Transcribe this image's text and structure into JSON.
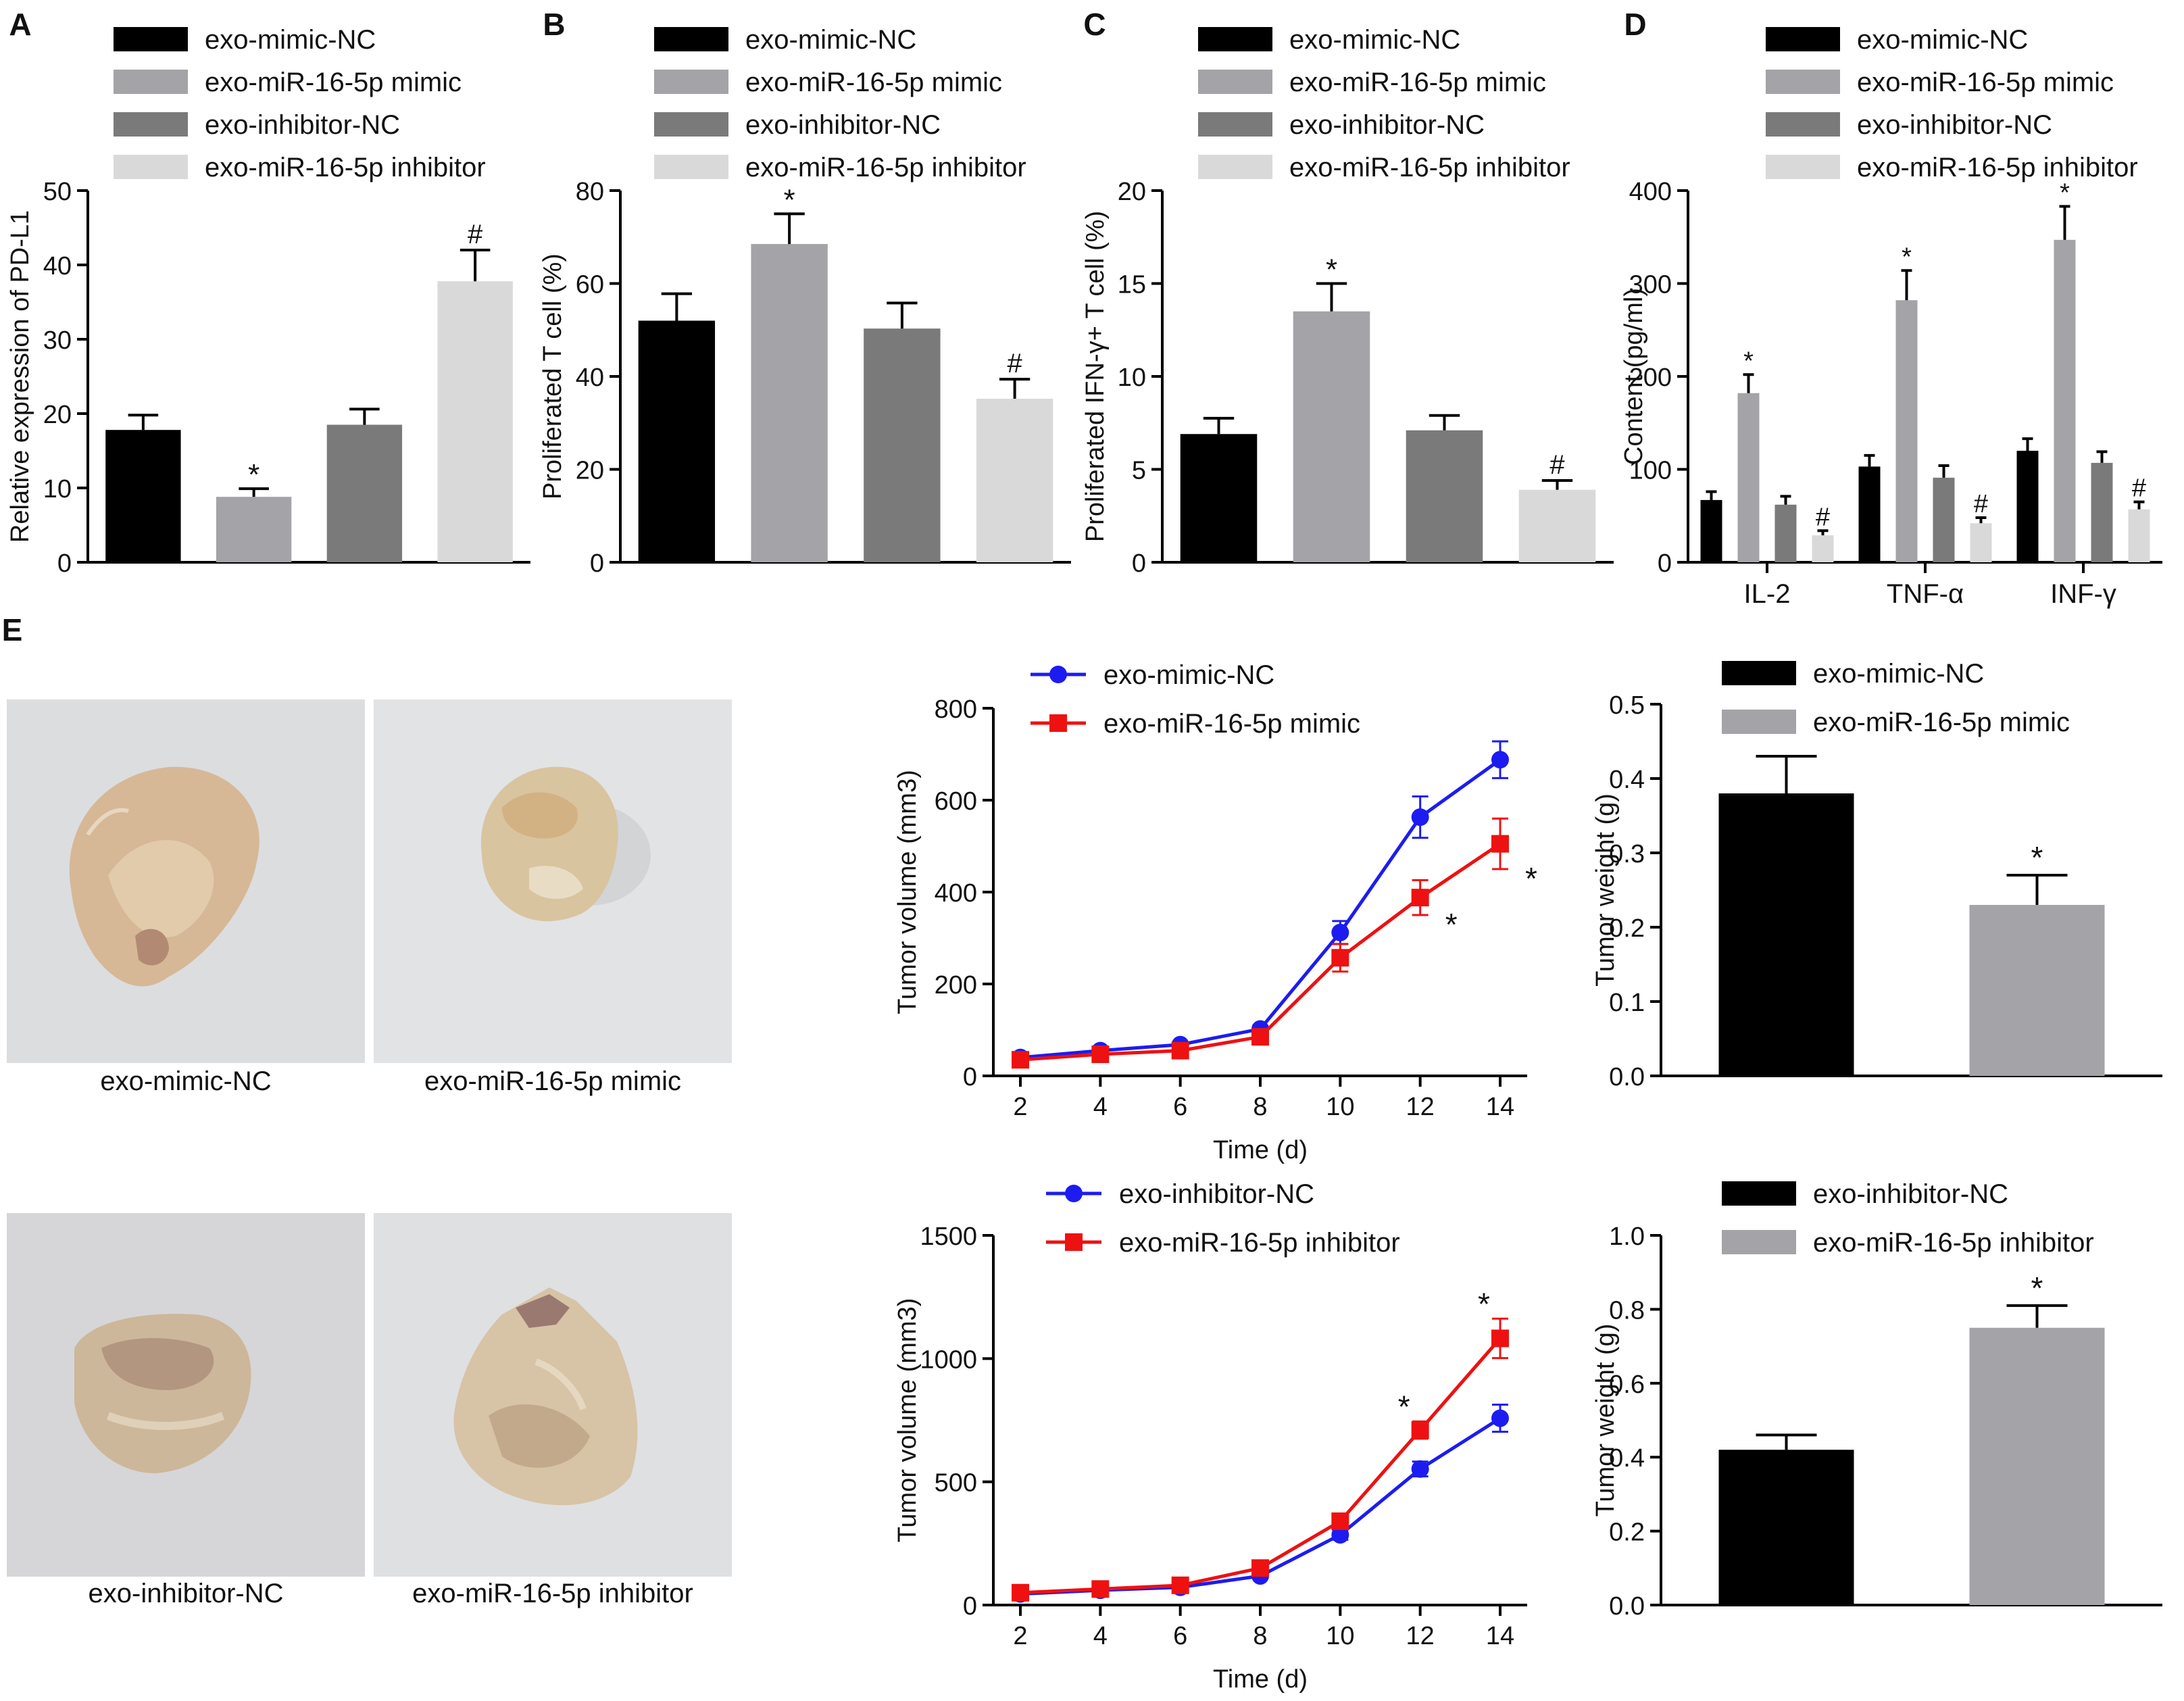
{
  "colors": {
    "black": "#000000",
    "mimic": "#a3a3a8",
    "dark_gray": "#7a7a7a",
    "light_gray": "#d9d9d9",
    "blue": "#1c1cf0",
    "red": "#ee1111",
    "photo_bg": "#d9dadc",
    "tumor": "#d8bc98",
    "tumor_dark": "#b89a7c",
    "tumor_pale": "#e4d4b8"
  },
  "panel_labels": [
    "A",
    "B",
    "C",
    "D",
    "E"
  ],
  "photos": {
    "captions": [
      "exo-mimic-NC",
      "exo-miR-16-5p mimic",
      "exo-inhibitor-NC",
      "exo-miR-16-5p inhibitor"
    ]
  },
  "chart_data": [
    {
      "id": "A",
      "type": "bar",
      "categories": [
        "exo-mimic-NC",
        "exo-miR-16-5p mimic",
        "exo-inhibitor-NC",
        "exo-miR-16-5p inhibitor"
      ],
      "values": [
        17.8,
        8.8,
        18.5,
        37.8
      ],
      "errors": [
        2.0,
        1.1,
        2.1,
        4.2
      ],
      "annotations": [
        "",
        "*",
        "",
        "#"
      ],
      "title": "",
      "xlabel": "",
      "ylabel": "Relative expression of PD-L1",
      "ylim": [
        0,
        50
      ],
      "yticks": [
        0,
        10,
        20,
        30,
        40,
        50
      ],
      "legend": [
        "exo-mimic-NC",
        "exo-miR-16-5p mimic",
        "exo-inhibitor-NC",
        "exo-miR-16-5p inhibitor"
      ]
    },
    {
      "id": "B",
      "type": "bar",
      "categories": [
        "exo-mimic-NC",
        "exo-miR-16-5p mimic",
        "exo-inhibitor-NC",
        "exo-miR-16-5p inhibitor"
      ],
      "values": [
        52,
        68.5,
        50.3,
        35.2
      ],
      "errors": [
        5.8,
        6.5,
        5.5,
        4.2
      ],
      "annotations": [
        "",
        "*",
        "",
        "#"
      ],
      "title": "",
      "xlabel": "",
      "ylabel": "Proliferated T cell (%)",
      "ylim": [
        0,
        80
      ],
      "yticks": [
        0,
        20,
        40,
        60,
        80
      ],
      "legend": [
        "exo-mimic-NC",
        "exo-miR-16-5p mimic",
        "exo-inhibitor-NC",
        "exo-miR-16-5p inhibitor"
      ]
    },
    {
      "id": "C",
      "type": "bar",
      "categories": [
        "exo-mimic-NC",
        "exo-miR-16-5p mimic",
        "exo-inhibitor-NC",
        "exo-miR-16-5p inhibitor"
      ],
      "values": [
        6.9,
        13.5,
        7.1,
        3.9
      ],
      "errors": [
        0.85,
        1.5,
        0.8,
        0.5
      ],
      "annotations": [
        "",
        "*",
        "",
        "#"
      ],
      "title": "",
      "xlabel": "",
      "ylabel": "Proliferated IFN-γ+ T cell (%)",
      "ylim": [
        0,
        20
      ],
      "yticks": [
        0,
        5,
        10,
        15,
        20
      ],
      "legend": [
        "exo-mimic-NC",
        "exo-miR-16-5p mimic",
        "exo-inhibitor-NC",
        "exo-miR-16-5p inhibitor"
      ]
    },
    {
      "id": "D",
      "type": "bar",
      "categories": [
        "IL-2",
        "TNF-α",
        "INF-γ"
      ],
      "series": [
        {
          "name": "exo-mimic-NC",
          "values": [
            67,
            103,
            120
          ],
          "errors": [
            9,
            12,
            13
          ],
          "annotations": [
            "",
            "",
            ""
          ]
        },
        {
          "name": "exo-miR-16-5p mimic",
          "values": [
            182,
            282,
            347
          ],
          "errors": [
            20,
            32,
            36
          ],
          "annotations": [
            "*",
            "*",
            "*"
          ]
        },
        {
          "name": "exo-inhibitor-NC",
          "values": [
            62,
            91,
            107
          ],
          "errors": [
            9,
            13,
            12
          ],
          "annotations": [
            "",
            "",
            ""
          ]
        },
        {
          "name": "exo-miR-16-5p inhibitor",
          "values": [
            29,
            42,
            57
          ],
          "errors": [
            5,
            6,
            8
          ],
          "annotations": [
            "#",
            "#",
            "#"
          ]
        }
      ],
      "title": "",
      "xlabel": "",
      "ylabel": "Content (pg/ml)",
      "ylim": [
        0,
        400
      ],
      "yticks": [
        0,
        100,
        200,
        300,
        400
      ]
    },
    {
      "id": "E-volume-mimic",
      "type": "line",
      "x": [
        2,
        4,
        6,
        8,
        10,
        12,
        14
      ],
      "series": [
        {
          "name": "exo-mimic-NC",
          "values": [
            40,
            55,
            68,
            102,
            312,
            563,
            688
          ],
          "errors": [
            5,
            5,
            5,
            7,
            25,
            45,
            40
          ],
          "annotations": [
            "",
            "",
            "",
            "",
            "",
            "",
            ""
          ]
        },
        {
          "name": "exo-miR-16-5p mimic",
          "values": [
            35,
            47,
            55,
            85,
            257,
            388,
            505
          ],
          "errors": [
            5,
            5,
            5,
            7,
            30,
            38,
            55
          ],
          "annotations": [
            "",
            "",
            "",
            "",
            "",
            "*",
            "*"
          ]
        }
      ],
      "title": "",
      "xlabel": "Time (d)",
      "ylabel": "Tumor volume (mm3)",
      "ylim": [
        0,
        800
      ],
      "yticks": [
        0,
        200,
        400,
        600,
        800
      ],
      "xticks": [
        2,
        4,
        6,
        8,
        10,
        12,
        14
      ]
    },
    {
      "id": "E-weight-mimic",
      "type": "bar",
      "categories": [
        "exo-mimic-NC",
        "exo-miR-16-5p mimic"
      ],
      "values": [
        0.38,
        0.23
      ],
      "errors": [
        0.05,
        0.04
      ],
      "annotations": [
        "",
        "*"
      ],
      "title": "",
      "xlabel": "",
      "ylabel": "Tumor weight (g)",
      "ylim": [
        0,
        0.5
      ],
      "yticks": [
        "0.0",
        "0.1",
        "0.2",
        "0.3",
        "0.4",
        "0.5"
      ],
      "legend": [
        "exo-mimic-NC",
        "exo-miR-16-5p mimic"
      ]
    },
    {
      "id": "E-volume-inhibitor",
      "type": "line",
      "x": [
        2,
        4,
        6,
        8,
        10,
        12,
        14
      ],
      "series": [
        {
          "name": "exo-inhibitor-NC",
          "values": [
            45,
            60,
            72,
            118,
            285,
            552,
            758
          ],
          "errors": [
            6,
            6,
            6,
            10,
            20,
            30,
            55
          ],
          "annotations": [
            "",
            "",
            "",
            "",
            "",
            "",
            ""
          ]
        },
        {
          "name": "exo-miR-16-5p inhibitor",
          "values": [
            50,
            65,
            80,
            150,
            340,
            710,
            1082
          ],
          "errors": [
            6,
            6,
            6,
            10,
            25,
            35,
            80
          ],
          "annotations": [
            "",
            "",
            "",
            "",
            "",
            "*",
            "*"
          ]
        }
      ],
      "title": "",
      "xlabel": "Time (d)",
      "ylabel": "Tumor volume (mm3)",
      "ylim": [
        0,
        1500
      ],
      "yticks": [
        0,
        500,
        1000,
        1500
      ],
      "xticks": [
        2,
        4,
        6,
        8,
        10,
        12,
        14
      ]
    },
    {
      "id": "E-weight-inhibitor",
      "type": "bar",
      "categories": [
        "exo-inhibitor-NC",
        "exo-miR-16-5p inhibitor"
      ],
      "values": [
        0.42,
        0.75
      ],
      "errors": [
        0.04,
        0.06
      ],
      "annotations": [
        "",
        "*"
      ],
      "title": "",
      "xlabel": "",
      "ylabel": "Tumor weight (g)",
      "ylim": [
        0,
        1.0
      ],
      "yticks": [
        "0.0",
        "0.2",
        "0.4",
        "0.6",
        "0.8",
        "1.0"
      ],
      "legend": [
        "exo-inhibitor-NC",
        "exo-miR-16-5p inhibitor"
      ]
    }
  ]
}
